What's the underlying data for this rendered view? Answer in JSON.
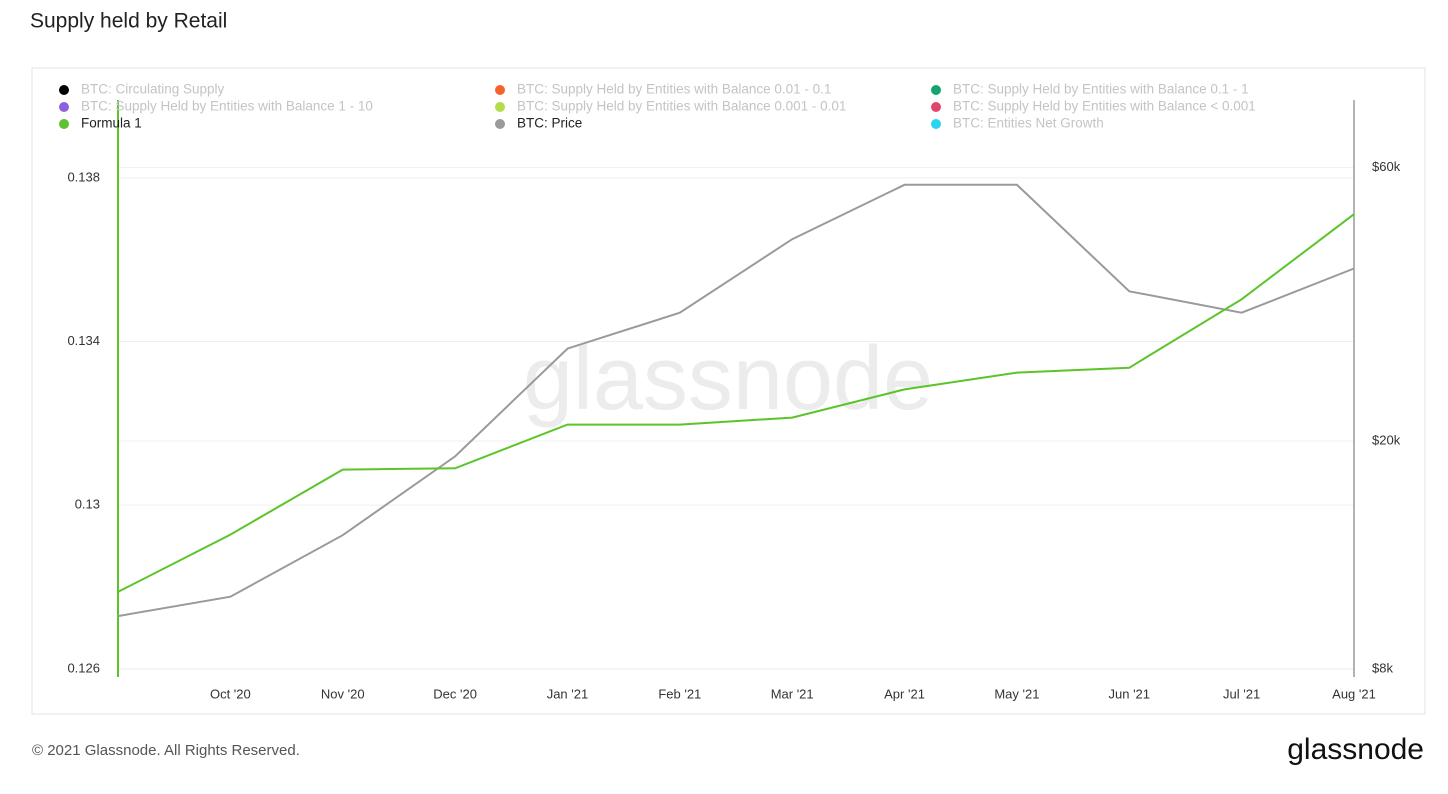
{
  "chart_data": {
    "type": "line",
    "title": "Supply held by Retail",
    "watermark": "glassnode",
    "footer": "© 2021 Glassnode. All Rights Reserved.",
    "logo": "glassnode",
    "x": [
      "2020-09",
      "2020-10",
      "2020-11",
      "2020-12",
      "2021-01",
      "2021-02",
      "2021-03",
      "2021-04",
      "2021-05",
      "2021-06",
      "2021-07",
      "2021-08"
    ],
    "xlim": [
      "2020-09",
      "2021-08"
    ],
    "xticks": [
      {
        "value": "2020-10",
        "label": "Oct '20"
      },
      {
        "value": "2020-11",
        "label": "Nov '20"
      },
      {
        "value": "2020-12",
        "label": "Dec '20"
      },
      {
        "value": "2021-01",
        "label": "Jan '21"
      },
      {
        "value": "2021-02",
        "label": "Feb '21"
      },
      {
        "value": "2021-03",
        "label": "Mar '21"
      },
      {
        "value": "2021-04",
        "label": "Apr '21"
      },
      {
        "value": "2021-05",
        "label": "May '21"
      },
      {
        "value": "2021-06",
        "label": "Jun '21"
      },
      {
        "value": "2021-07",
        "label": "Jul '21"
      },
      {
        "value": "2021-08",
        "label": "Aug '21"
      }
    ],
    "ylim": [
      0.1258,
      0.14
    ],
    "yticks": [
      0.126,
      0.13,
      0.134,
      0.138
    ],
    "y2lim": [
      7750,
      80000
    ],
    "y2_log": true,
    "y2ticks": [
      {
        "value": 8000,
        "label": "$8k"
      },
      {
        "value": 20000,
        "label": "$20k"
      },
      {
        "value": 60000,
        "label": "$60k"
      }
    ],
    "grid": true,
    "series": [
      {
        "name": "Formula 1",
        "color": "#5bc42a",
        "values": [
          0.12788,
          0.12928,
          0.13087,
          0.1309,
          0.13197,
          0.13197,
          0.13214,
          0.13283,
          0.13324,
          0.13336,
          0.13503,
          0.13711
        ]
      },
      {
        "name": "BTC: Price",
        "color": "#9a9a9a",
        "axis": "y2",
        "values": [
          9900,
          10700,
          13700,
          18800,
          29000,
          33500,
          45000,
          56000,
          56000,
          36500,
          33500,
          40000
        ]
      }
    ],
    "legend_inactive": [
      {
        "name": "BTC: Circulating Supply",
        "color": "#000000"
      },
      {
        "name": "BTC: Supply Held by Entities with Balance 0.01 - 0.1",
        "color": "#f7622b"
      },
      {
        "name": "BTC: Supply Held by Entities with Balance 0.1 - 1",
        "color": "#14a56e"
      },
      {
        "name": "BTC: Supply Held by Entities with Balance 1 - 10",
        "color": "#8f5fe0"
      },
      {
        "name": "BTC: Supply Held by Entities with Balance 0.001 - 0.01",
        "color": "#b2dc4a"
      },
      {
        "name": "BTC: Supply Held by Entities with Balance < 0.001",
        "color": "#e0466a"
      },
      {
        "name": "BTC: Entities Net Growth",
        "color": "#2ad4f0"
      }
    ]
  }
}
